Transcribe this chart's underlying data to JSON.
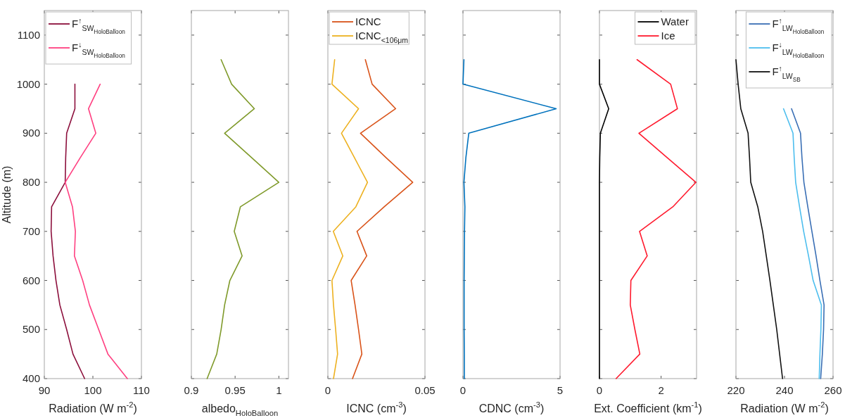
{
  "chart_data": [
    {
      "type": "line",
      "xlabel": "Radiation (W m$^{-2}$)",
      "ylabel": "Altitude (m)",
      "xlim": [
        90,
        110
      ],
      "xticks": [
        90,
        100,
        110
      ],
      "ylim": [
        400,
        1150
      ],
      "yticks": [
        400,
        500,
        600,
        700,
        800,
        900,
        1000,
        1100
      ],
      "legend": "top left",
      "series": [
        {
          "name": "F$^{↑}$$_{SW}$$_{HoloBalloon}$",
          "color": "#8c0f3c",
          "x": [
            98.3,
            95.9,
            94.6,
            93.2,
            92.4,
            91.8,
            91.4,
            91.5,
            94.3,
            94.4,
            94.6,
            96.3,
            96.3
          ],
          "values": [
            400,
            450,
            500,
            550,
            600,
            650,
            700,
            750,
            800,
            850,
            900,
            950,
            1000
          ]
        },
        {
          "name": "F$^{↓}$$_{SW}$$_{HoloBalloon}$",
          "color": "#ff4081",
          "x": [
            107.1,
            103.1,
            101.2,
            99.3,
            97.9,
            96.2,
            96.4,
            95.8,
            94.3,
            97.4,
            100.6,
            99.1,
            101.5
          ],
          "values": [
            400,
            450,
            500,
            550,
            600,
            650,
            700,
            750,
            800,
            850,
            900,
            950,
            1000
          ]
        }
      ]
    },
    {
      "type": "line",
      "xlabel": "albedo$_{HoloBalloon}$",
      "xlim": [
        0.9,
        1.011
      ],
      "xticks": [
        0.9,
        0.95,
        1
      ],
      "ylim": [
        400,
        1150
      ],
      "yticks": [
        400,
        500,
        600,
        700,
        800,
        900,
        1000,
        1100
      ],
      "tick_labels": "x",
      "series": [
        {
          "color": "#7f9a2a",
          "x": [
            0.918,
            0.929,
            0.934,
            0.938,
            0.944,
            0.958,
            0.949,
            0.956,
            1.0,
            0.969,
            0.938,
            0.972,
            0.946,
            0.934
          ],
          "values": [
            400,
            450,
            500,
            550,
            600,
            650,
            700,
            750,
            800,
            850,
            900,
            950,
            1000,
            1050
          ]
        }
      ]
    },
    {
      "type": "line",
      "xlabel": "ICNC (cm$^{-3}$)",
      "xlim": [
        0,
        0.05
      ],
      "xticks": [
        0,
        0.05
      ],
      "ylim": [
        400,
        1150
      ],
      "yticks": [
        400,
        500,
        600,
        700,
        800,
        900,
        1000,
        1100
      ],
      "tick_labels": "x",
      "legend": "top left",
      "series": [
        {
          "name": "ICNC",
          "color": "#d95319",
          "x": [
            0.0127,
            0.0175,
            0.0158,
            0.014,
            0.012,
            0.02,
            0.015,
            0.029,
            0.0437,
            0.03,
            0.0168,
            0.0349,
            0.0228,
            0.0193
          ],
          "values": [
            400,
            450,
            500,
            550,
            600,
            650,
            700,
            750,
            800,
            850,
            900,
            950,
            1000,
            1050
          ]
        },
        {
          "name": "ICNC$_{<106μm}$",
          "color": "#edb120",
          "x": [
            0.0029,
            0.005,
            0.004,
            0.0029,
            0.0021,
            0.0077,
            0.0028,
            0.0144,
            0.0204,
            0.0137,
            0.007,
            0.0158,
            0.0021,
            0.0035
          ],
          "values": [
            400,
            450,
            500,
            550,
            600,
            650,
            700,
            750,
            800,
            850,
            900,
            950,
            1000,
            1050
          ]
        }
      ]
    },
    {
      "type": "line",
      "xlabel": "CDNC (cm$^{-3}$)",
      "xlim": [
        0,
        5
      ],
      "xticks": [
        0,
        5
      ],
      "ylim": [
        400,
        1150
      ],
      "yticks": [
        400,
        500,
        600,
        700,
        800,
        900,
        1000,
        1100
      ],
      "tick_labels": "x",
      "series": [
        {
          "color": "#0072bd",
          "x": [
            0.07,
            0.07,
            0.06,
            0.06,
            0.06,
            0.07,
            0.08,
            0.1,
            0.05,
            0.15,
            0.3,
            4.8,
            0.0,
            0.05
          ],
          "values": [
            400,
            450,
            500,
            550,
            600,
            650,
            700,
            750,
            800,
            850,
            900,
            950,
            1000,
            1050
          ]
        }
      ]
    },
    {
      "type": "line",
      "xlabel": "Ext. Coefficient (km$^{-1}$)",
      "xlim": [
        0,
        3.15
      ],
      "xticks": [
        0,
        2
      ],
      "ylim": [
        400,
        1150
      ],
      "yticks": [
        400,
        500,
        600,
        700,
        800,
        900,
        1000,
        1100
      ],
      "tick_labels": "x",
      "legend": "top right",
      "series": [
        {
          "name": "Water",
          "color": "#000000",
          "x": [
            0,
            0,
            0,
            0,
            0,
            0,
            0,
            0,
            0,
            0.01,
            0.03,
            0.3,
            0,
            0
          ],
          "values": [
            400,
            450,
            500,
            550,
            600,
            650,
            700,
            750,
            800,
            850,
            900,
            950,
            1000,
            1050
          ]
        },
        {
          "name": "Ice",
          "color": "#ff1a2e",
          "x": [
            0.54,
            1.31,
            1.15,
            1.0,
            1.02,
            1.55,
            1.3,
            2.38,
            3.13,
            2.2,
            1.28,
            2.53,
            2.31,
            1.22
          ],
          "values": [
            400,
            450,
            500,
            550,
            600,
            650,
            700,
            750,
            800,
            850,
            900,
            950,
            1000,
            1050
          ]
        }
      ]
    },
    {
      "type": "line",
      "xlabel": "Radiation (W m$^{-2}$)",
      "xlim": [
        220,
        260
      ],
      "xticks": [
        220,
        240,
        260
      ],
      "ylim": [
        400,
        1150
      ],
      "yticks": [
        400,
        500,
        600,
        700,
        800,
        900,
        1000,
        1100
      ],
      "tick_labels": "x",
      "legend": "top right",
      "series": [
        {
          "name": "F$^{↑}$$_{LW}$$_{HoloBalloon}$",
          "color": "#3a6fb5",
          "x": [
            254.9,
            255.6,
            256.1,
            256.3,
            254.6,
            253,
            251.3,
            249.6,
            248,
            247.2,
            246.6,
            242.9
          ],
          "values": [
            400,
            450,
            500,
            550,
            600,
            650,
            700,
            750,
            800,
            850,
            900,
            950
          ]
        },
        {
          "name": "F$^{↓}$$_{LW}$$_{HoloBalloon}$",
          "color": "#4dbeee",
          "x": [
            254.3,
            254.6,
            255,
            255.2,
            251.8,
            249.9,
            247.9,
            246.2,
            244.6,
            244,
            243.5,
            239.6
          ],
          "values": [
            400,
            450,
            500,
            550,
            600,
            650,
            700,
            750,
            800,
            850,
            900,
            950
          ]
        },
        {
          "name": "F$^{↑}$$_{LW}$$_{SB}$",
          "color": "#111111",
          "x": [
            239.2,
            238,
            236.8,
            235.4,
            234,
            232.5,
            231,
            229,
            226.1,
            225.6,
            225,
            222,
            220.9,
            220
          ],
          "values": [
            400,
            450,
            500,
            550,
            600,
            650,
            700,
            750,
            800,
            850,
            900,
            950,
            1000,
            1050
          ]
        }
      ]
    }
  ]
}
